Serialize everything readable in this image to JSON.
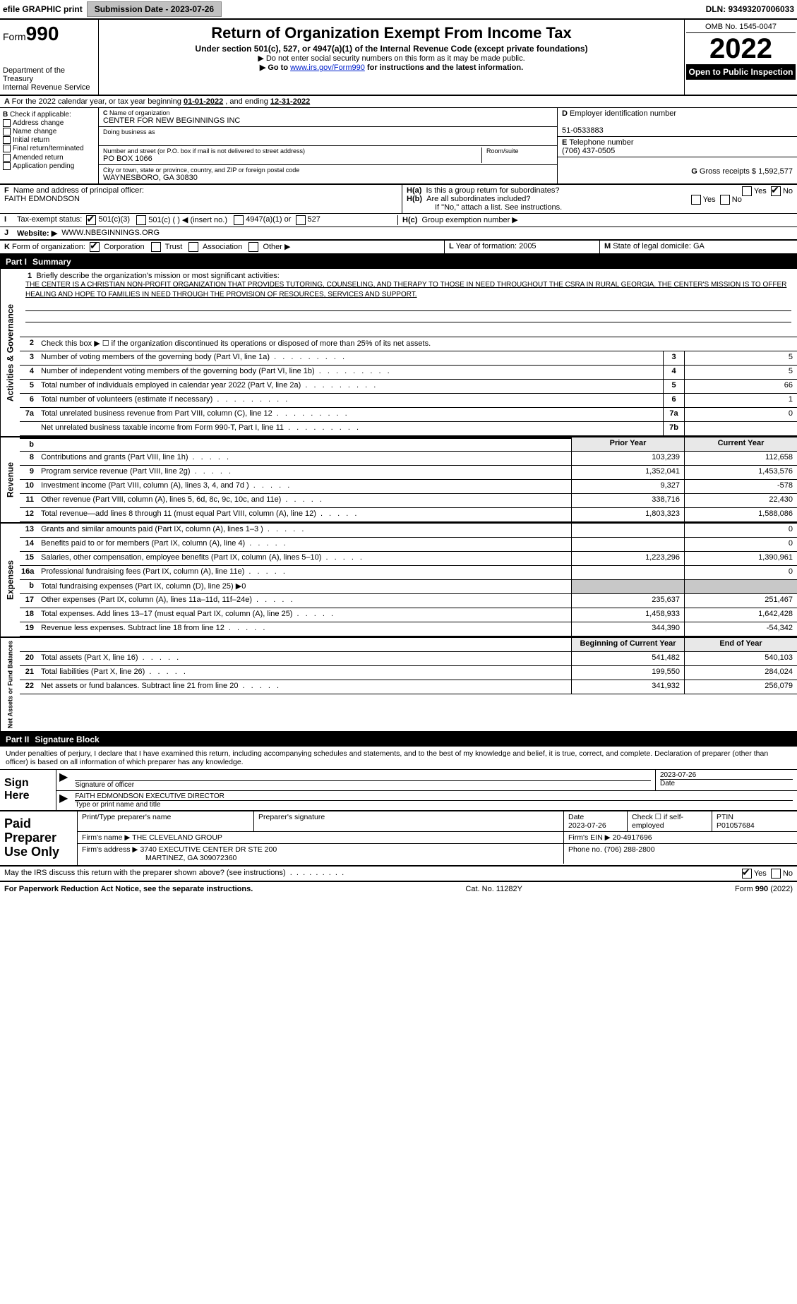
{
  "topbar": {
    "efile_prefix": "efile ",
    "efile_bold1": "GRAPHIC ",
    "efile_bold2": "print",
    "submission_btn": "Submission Date - 2023-07-26",
    "dln": "DLN: 93493207006033"
  },
  "header": {
    "form_label": "Form",
    "form_num": "990",
    "dept": "Department of the Treasury",
    "irs": "Internal Revenue Service",
    "title": "Return of Organization Exempt From Income Tax",
    "sub": "Under section 501(c), 527, or 4947(a)(1) of the Internal Revenue Code (except private foundations)",
    "note1": "▶ Do not enter social security numbers on this form as it may be made public.",
    "note2_pre": "▶ Go to ",
    "note2_link": "www.irs.gov/Form990",
    "note2_post": " for instructions and the latest information.",
    "omb": "OMB No. 1545-0047",
    "year": "2022",
    "open": "Open to Public Inspection"
  },
  "A": {
    "text_pre": "For the 2022 calendar year, or tax year beginning ",
    "begin": "01-01-2022",
    "mid": " , and ending ",
    "end": "12-31-2022"
  },
  "B": {
    "label": "Check if applicable:",
    "items": [
      "Address change",
      "Name change",
      "Initial return",
      "Final return/terminated",
      "Amended return",
      "Application pending"
    ]
  },
  "C": {
    "name_label": "Name of organization",
    "name": "CENTER FOR NEW BEGINNINGS INC",
    "dba_label": "Doing business as",
    "addr_label": "Number and street (or P.O. box if mail is not delivered to street address)",
    "room_label": "Room/suite",
    "addr": "PO BOX 1066",
    "city_label": "City or town, state or province, country, and ZIP or foreign postal code",
    "city": "WAYNESBORO, GA  30830"
  },
  "D": {
    "label": "Employer identification number",
    "val": "51-0533883"
  },
  "E": {
    "label": "Telephone number",
    "val": "(706) 437-0505"
  },
  "G": {
    "label": "Gross receipts $",
    "val": "1,592,577"
  },
  "F": {
    "label": "Name and address of principal officer:",
    "val": "FAITH EDMONDSON"
  },
  "H": {
    "a": "Is this a group return for subordinates?",
    "b": "Are all subordinates included?",
    "b_note": "If \"No,\" attach a list. See instructions.",
    "c": "Group exemption number ▶",
    "yes": "Yes",
    "no": "No"
  },
  "I": {
    "label": "Tax-exempt status:",
    "opts": [
      "501(c)(3)",
      "501(c) (  ) ◀ (insert no.)",
      "4947(a)(1) or",
      "527"
    ]
  },
  "J": {
    "label": "Website: ▶",
    "val": "WWW.NBEGINNINGS.ORG"
  },
  "K": {
    "label": "Form of organization:",
    "opts": [
      "Corporation",
      "Trust",
      "Association",
      "Other ▶"
    ]
  },
  "L": {
    "label": "Year of formation:",
    "val": "2005"
  },
  "M": {
    "label": "State of legal domicile:",
    "val": "GA"
  },
  "part1": {
    "num": "Part I",
    "title": "Summary"
  },
  "sidetabs": {
    "ag": "Activities & Governance",
    "rev": "Revenue",
    "exp": "Expenses",
    "net": "Net Assets or Fund Balances"
  },
  "mission": {
    "label": "Briefly describe the organization's mission or most significant activities:",
    "text": "THE CENTER IS A CHRISTIAN NON-PROFIT ORGANIZATION THAT PROVIDES TUTORING, COUNSELING, AND THERAPY TO THOSE IN NEED THROUGHOUT THE CSRA IN RURAL GEORGIA. THE CENTER'S MISSION IS TO OFFER HEALING AND HOPE TO FAMILIES IN NEED THROUGH THE PROVISION OF RESOURCES, SERVICES AND SUPPORT."
  },
  "lines_ag": [
    {
      "n": "2",
      "d": "Check this box ▶ ☐ if the organization discontinued its operations or disposed of more than 25% of its net assets."
    },
    {
      "n": "3",
      "d": "Number of voting members of the governing body (Part VI, line 1a)",
      "box": "3",
      "v": "5"
    },
    {
      "n": "4",
      "d": "Number of independent voting members of the governing body (Part VI, line 1b)",
      "box": "4",
      "v": "5"
    },
    {
      "n": "5",
      "d": "Total number of individuals employed in calendar year 2022 (Part V, line 2a)",
      "box": "5",
      "v": "66"
    },
    {
      "n": "6",
      "d": "Total number of volunteers (estimate if necessary)",
      "box": "6",
      "v": "1"
    },
    {
      "n": "7a",
      "d": "Total unrelated business revenue from Part VIII, column (C), line 12",
      "box": "7a",
      "v": "0"
    },
    {
      "n": "",
      "d": "Net unrelated business taxable income from Form 990-T, Part I, line 11",
      "box": "7b",
      "v": ""
    }
  ],
  "col_hdrs": {
    "prior": "Prior Year",
    "current": "Current Year",
    "boc": "Beginning of Current Year",
    "eoy": "End of Year"
  },
  "lines_rev": [
    {
      "n": "8",
      "d": "Contributions and grants (Part VIII, line 1h)",
      "p": "103,239",
      "c": "112,658"
    },
    {
      "n": "9",
      "d": "Program service revenue (Part VIII, line 2g)",
      "p": "1,352,041",
      "c": "1,453,576"
    },
    {
      "n": "10",
      "d": "Investment income (Part VIII, column (A), lines 3, 4, and 7d )",
      "p": "9,327",
      "c": "-578"
    },
    {
      "n": "11",
      "d": "Other revenue (Part VIII, column (A), lines 5, 6d, 8c, 9c, 10c, and 11e)",
      "p": "338,716",
      "c": "22,430"
    },
    {
      "n": "12",
      "d": "Total revenue—add lines 8 through 11 (must equal Part VIII, column (A), line 12)",
      "p": "1,803,323",
      "c": "1,588,086"
    }
  ],
  "lines_exp": [
    {
      "n": "13",
      "d": "Grants and similar amounts paid (Part IX, column (A), lines 1–3 )",
      "p": "",
      "c": "0"
    },
    {
      "n": "14",
      "d": "Benefits paid to or for members (Part IX, column (A), line 4)",
      "p": "",
      "c": "0"
    },
    {
      "n": "15",
      "d": "Salaries, other compensation, employee benefits (Part IX, column (A), lines 5–10)",
      "p": "1,223,296",
      "c": "1,390,961"
    },
    {
      "n": "16a",
      "d": "Professional fundraising fees (Part IX, column (A), line 11e)",
      "p": "",
      "c": "0"
    },
    {
      "n": "b",
      "d": "Total fundraising expenses (Part IX, column (D), line 25) ▶0",
      "shade": true
    },
    {
      "n": "17",
      "d": "Other expenses (Part IX, column (A), lines 11a–11d, 11f–24e)",
      "p": "235,637",
      "c": "251,467"
    },
    {
      "n": "18",
      "d": "Total expenses. Add lines 13–17 (must equal Part IX, column (A), line 25)",
      "p": "1,458,933",
      "c": "1,642,428"
    },
    {
      "n": "19",
      "d": "Revenue less expenses. Subtract line 18 from line 12",
      "p": "344,390",
      "c": "-54,342"
    }
  ],
  "lines_net": [
    {
      "n": "20",
      "d": "Total assets (Part X, line 16)",
      "p": "541,482",
      "c": "540,103"
    },
    {
      "n": "21",
      "d": "Total liabilities (Part X, line 26)",
      "p": "199,550",
      "c": "284,024"
    },
    {
      "n": "22",
      "d": "Net assets or fund balances. Subtract line 21 from line 20",
      "p": "341,932",
      "c": "256,079"
    }
  ],
  "part2": {
    "num": "Part II",
    "title": "Signature Block"
  },
  "sig": {
    "decl": "Under penalties of perjury, I declare that I have examined this return, including accompanying schedules and statements, and to the best of my knowledge and belief, it is true, correct, and complete. Declaration of preparer (other than officer) is based on all information of which preparer has any knowledge.",
    "sign_here": "Sign Here",
    "sig_officer": "Signature of officer",
    "date": "Date",
    "date_val": "2023-07-26",
    "name_title": "FAITH EDMONDSON  EXECUTIVE DIRECTOR",
    "type_name": "Type or print name and title"
  },
  "paid": {
    "label": "Paid Preparer Use Only",
    "h1": "Print/Type preparer's name",
    "h2": "Preparer's signature",
    "h3": "Date",
    "h4": "Check ☐ if self-employed",
    "h5": "PTIN",
    "date": "2023-07-26",
    "ptin": "P01057684",
    "firm_name_label": "Firm's name    ▶",
    "firm_name": "THE CLEVELAND GROUP",
    "firm_ein_label": "Firm's EIN ▶",
    "firm_ein": "20-4917696",
    "firm_addr_label": "Firm's address ▶",
    "firm_addr1": "3740 EXECUTIVE CENTER DR STE 200",
    "firm_addr2": "MARTINEZ, GA  309072360",
    "phone_label": "Phone no.",
    "phone": "(706) 288-2800"
  },
  "discuss": {
    "q": "May the IRS discuss this return with the preparer shown above? (see instructions)",
    "yes": "Yes",
    "no": "No"
  },
  "footer": {
    "left": "For Paperwork Reduction Act Notice, see the separate instructions.",
    "mid": "Cat. No. 11282Y",
    "right_pre": "Form ",
    "right_bold": "990",
    "right_post": " (2022)"
  }
}
